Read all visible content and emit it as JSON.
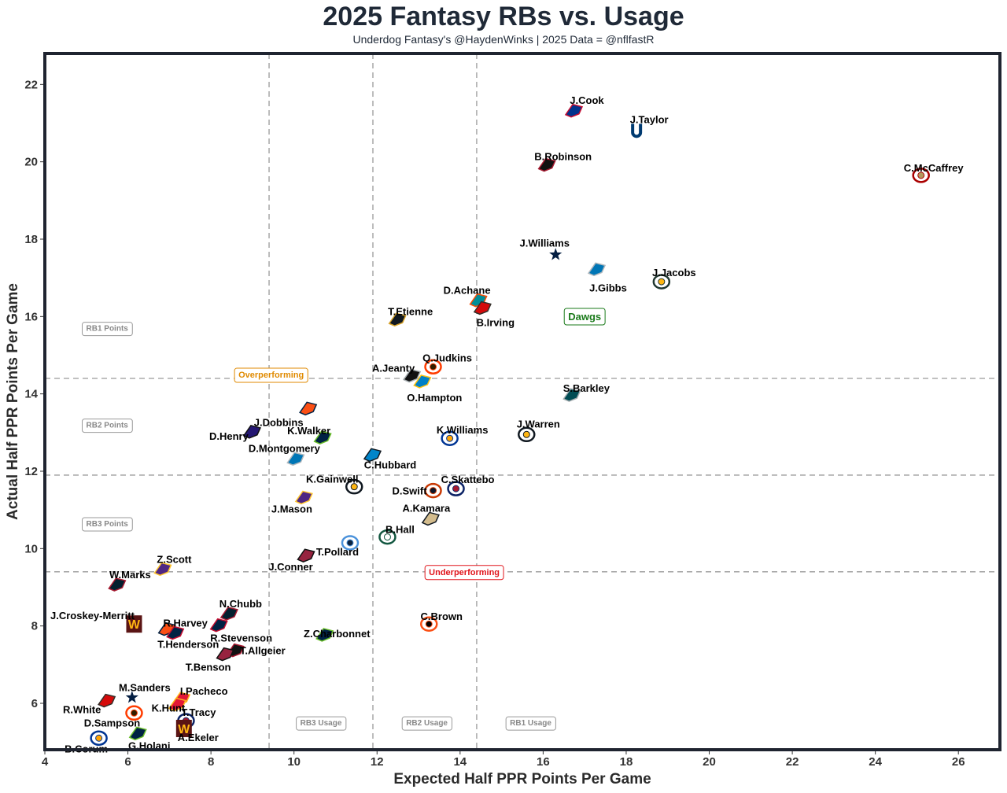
{
  "title": "2025 Fantasy RBs vs. Usage",
  "subtitle": "Underdog Fantasy's @HaydenWinks | 2025 Data = @nflfastR",
  "chart_data": {
    "type": "scatter",
    "xlabel": "Expected Half PPR Points Per Game",
    "ylabel": "Actual Half PPR Points Per Game",
    "xlim": [
      4,
      27
    ],
    "ylim": [
      4.8,
      22.8
    ],
    "xticks": [
      4,
      6,
      8,
      10,
      12,
      14,
      16,
      18,
      20,
      22,
      24,
      26
    ],
    "yticks": [
      6,
      8,
      10,
      12,
      14,
      16,
      18,
      20,
      22
    ],
    "grid": false,
    "reference_lines": {
      "vertical": [
        9.4,
        11.9,
        14.4
      ],
      "horizontal": [
        9.4,
        11.9,
        14.4
      ]
    },
    "annotations": [
      {
        "text": "RB1 Points",
        "x": 5.5,
        "y": 15.7,
        "style": "gray"
      },
      {
        "text": "RB2 Points",
        "x": 5.5,
        "y": 13.2,
        "style": "gray"
      },
      {
        "text": "RB3 Points",
        "x": 5.5,
        "y": 10.65,
        "style": "gray"
      },
      {
        "text": "RB3 Usage",
        "x": 10.65,
        "y": 5.5,
        "style": "gray"
      },
      {
        "text": "RB2 Usage",
        "x": 13.2,
        "y": 5.5,
        "style": "gray"
      },
      {
        "text": "RB1 Usage",
        "x": 15.7,
        "y": 5.5,
        "style": "gray"
      },
      {
        "text": "Overperforming",
        "x": 9.45,
        "y": 14.5,
        "style": "orange"
      },
      {
        "text": "Underperforming",
        "x": 14.1,
        "y": 9.4,
        "style": "red"
      },
      {
        "text": "Dawgs",
        "x": 17.0,
        "y": 16.0,
        "style": "green"
      }
    ],
    "points": [
      {
        "name": "J.Cook",
        "team": "BUF",
        "x": 16.75,
        "y": 21.3,
        "color": "#00338D",
        "accent": "#C60C30"
      },
      {
        "name": "J.Taylor",
        "team": "IND",
        "x": 18.25,
        "y": 20.8,
        "color": "#003A70",
        "accent": "#ffffff"
      },
      {
        "name": "B.Robinson",
        "team": "ATL",
        "x": 16.1,
        "y": 19.9,
        "color": "#111111",
        "accent": "#A71930"
      },
      {
        "name": "C.McCaffrey",
        "team": "SF",
        "x": 25.1,
        "y": 19.65,
        "color": "#AA0000",
        "accent": "#B3995D"
      },
      {
        "name": "J.Williams",
        "team": "DAL",
        "x": 16.3,
        "y": 17.6,
        "color": "#041E42",
        "accent": "#869397"
      },
      {
        "name": "J.Gibbs",
        "team": "DET",
        "x": 17.3,
        "y": 17.2,
        "color": "#0076B6",
        "accent": "#B0B7BC"
      },
      {
        "name": "J.Jacobs",
        "team": "GB",
        "x": 18.85,
        "y": 16.9,
        "color": "#203731",
        "accent": "#FFB612"
      },
      {
        "name": "D.Achane",
        "team": "MIA",
        "x": 14.45,
        "y": 16.4,
        "color": "#008E97",
        "accent": "#FC4C02"
      },
      {
        "name": "B.Irving",
        "team": "TB",
        "x": 14.55,
        "y": 16.2,
        "color": "#D50A0A",
        "accent": "#34302B"
      },
      {
        "name": "T.Etienne",
        "team": "JAX",
        "x": 12.5,
        "y": 15.9,
        "color": "#101820",
        "accent": "#D7A22A"
      },
      {
        "name": "Q.Judkins",
        "team": "CLE",
        "x": 13.35,
        "y": 14.7,
        "color": "#FF3C00",
        "accent": "#311D00"
      },
      {
        "name": "A.Jeanty",
        "team": "LV",
        "x": 12.85,
        "y": 14.45,
        "color": "#111111",
        "accent": "#A5ACAF"
      },
      {
        "name": "O.Hampton",
        "team": "LAC",
        "x": 13.1,
        "y": 14.3,
        "color": "#0080C6",
        "accent": "#FFC20E"
      },
      {
        "name": "S.Barkley",
        "team": "PHI",
        "x": 16.7,
        "y": 13.95,
        "color": "#004C54",
        "accent": "#A5ACAF"
      },
      {
        "name": "J.Dobbins",
        "team": "DEN",
        "x": 10.35,
        "y": 13.6,
        "color": "#FB4F14",
        "accent": "#002244"
      },
      {
        "name": "D.Henry",
        "team": "BAL",
        "x": 9.0,
        "y": 13.0,
        "color": "#241773",
        "accent": "#111111"
      },
      {
        "name": "K.Walker",
        "team": "SEA",
        "x": 10.7,
        "y": 12.85,
        "color": "#002244",
        "accent": "#69BE28"
      },
      {
        "name": "K.Williams",
        "team": "LAR",
        "x": 13.75,
        "y": 12.85,
        "color": "#003594",
        "accent": "#FFA300"
      },
      {
        "name": "J.Warren",
        "team": "PIT",
        "x": 15.6,
        "y": 12.95,
        "color": "#101820",
        "accent": "#FFB612"
      },
      {
        "name": "D.Montgomery",
        "team": "DET",
        "x": 10.05,
        "y": 12.3,
        "color": "#0076B6",
        "accent": "#B0B7BC"
      },
      {
        "name": "C.Hubbard",
        "team": "CAR",
        "x": 11.9,
        "y": 12.4,
        "color": "#0085CA",
        "accent": "#101820"
      },
      {
        "name": "K.Gainwell",
        "team": "PIT",
        "x": 11.45,
        "y": 11.6,
        "color": "#101820",
        "accent": "#FFB612"
      },
      {
        "name": "D.Swift",
        "team": "CHI",
        "x": 13.35,
        "y": 11.5,
        "color": "#C83803",
        "accent": "#0B162A"
      },
      {
        "name": "C.Skattebo",
        "team": "NYG",
        "x": 13.9,
        "y": 11.55,
        "color": "#0B2265",
        "accent": "#A71930"
      },
      {
        "name": "J.Mason",
        "team": "MIN",
        "x": 10.25,
        "y": 11.3,
        "color": "#4F2683",
        "accent": "#FFC62F"
      },
      {
        "name": "A.Kamara",
        "team": "NO",
        "x": 13.3,
        "y": 10.75,
        "color": "#D3BC8D",
        "accent": "#101820"
      },
      {
        "name": "B.Hall",
        "team": "NYJ",
        "x": 12.25,
        "y": 10.3,
        "color": "#125740",
        "accent": "#ffffff"
      },
      {
        "name": "T.Pollard",
        "team": "TEN",
        "x": 11.35,
        "y": 10.15,
        "color": "#4B92DB",
        "accent": "#0C2340"
      },
      {
        "name": "J.Conner",
        "team": "ARI",
        "x": 10.3,
        "y": 9.8,
        "color": "#97233F",
        "accent": "#111111"
      },
      {
        "name": "Z.Scott",
        "team": "MIN",
        "x": 6.85,
        "y": 9.45,
        "color": "#4F2683",
        "accent": "#FFC62F"
      },
      {
        "name": "W.Marks",
        "team": "HOU",
        "x": 5.75,
        "y": 9.05,
        "color": "#03202F",
        "accent": "#A71930"
      },
      {
        "name": "J.Croskey-Merritt",
        "team": "WAS",
        "x": 6.15,
        "y": 8.05,
        "color": "#5A1414",
        "accent": "#FFB612"
      },
      {
        "name": "R.Harvey",
        "team": "DEN",
        "x": 6.95,
        "y": 7.9,
        "color": "#FB4F14",
        "accent": "#002244"
      },
      {
        "name": "T.Henderson",
        "team": "NE",
        "x": 7.15,
        "y": 7.8,
        "color": "#002244",
        "accent": "#C60C30"
      },
      {
        "name": "N.Chubb",
        "team": "HOU",
        "x": 8.45,
        "y": 8.3,
        "color": "#03202F",
        "accent": "#A71930"
      },
      {
        "name": "R.Stevenson",
        "team": "NE",
        "x": 8.2,
        "y": 8.0,
        "color": "#002244",
        "accent": "#C60C30"
      },
      {
        "name": "Z.Charbonnet",
        "team": "SEA",
        "x": 10.75,
        "y": 7.75,
        "color": "#002244",
        "accent": "#69BE28"
      },
      {
        "name": "C.Brown",
        "team": "CIN",
        "x": 13.25,
        "y": 8.05,
        "color": "#FB4F14",
        "accent": "#000000"
      },
      {
        "name": "T.Allgeier",
        "team": "ATL",
        "x": 8.6,
        "y": 7.35,
        "color": "#111111",
        "accent": "#A71930"
      },
      {
        "name": "T.Benson",
        "team": "ARI",
        "x": 8.35,
        "y": 7.25,
        "color": "#97233F",
        "accent": "#111111"
      },
      {
        "name": "M.Sanders",
        "team": "DAL",
        "x": 6.1,
        "y": 6.15,
        "color": "#041E42",
        "accent": "#869397"
      },
      {
        "name": "R.White",
        "team": "TB",
        "x": 5.5,
        "y": 6.05,
        "color": "#D50A0A",
        "accent": "#34302B"
      },
      {
        "name": "I.Pacheco",
        "team": "KC",
        "x": 7.3,
        "y": 6.1,
        "color": "#E31837",
        "accent": "#FFB81C"
      },
      {
        "name": "K.Hunt",
        "team": "KC",
        "x": 7.2,
        "y": 5.95,
        "color": "#E31837",
        "accent": "#FFB81C"
      },
      {
        "name": "D.Sampson",
        "team": "CLE",
        "x": 6.15,
        "y": 5.75,
        "color": "#FF3C00",
        "accent": "#311D00"
      },
      {
        "name": "T.Tracy",
        "team": "NYG",
        "x": 7.4,
        "y": 5.55,
        "color": "#0B2265",
        "accent": "#A71930"
      },
      {
        "name": "A.Ekeler",
        "team": "WAS",
        "x": 7.35,
        "y": 5.35,
        "color": "#5A1414",
        "accent": "#FFB612"
      },
      {
        "name": "G.Holani",
        "team": "SEA",
        "x": 6.25,
        "y": 5.2,
        "color": "#002244",
        "accent": "#69BE28"
      },
      {
        "name": "B.Corum",
        "team": "LAR",
        "x": 5.3,
        "y": 5.1,
        "color": "#003594",
        "accent": "#FFA300"
      }
    ]
  }
}
